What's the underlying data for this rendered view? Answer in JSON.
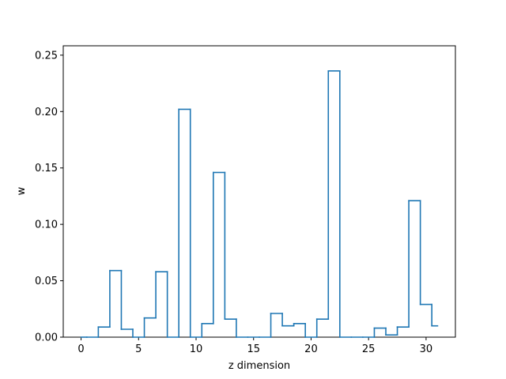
{
  "chart_data": {
    "type": "line",
    "drawstyle": "steps-mid",
    "title": "",
    "xlabel": "z dimension",
    "ylabel": "w",
    "xlim": [
      -1.55,
      32.55
    ],
    "ylim": [
      0,
      0.2583
    ],
    "xticks": [
      0,
      5,
      10,
      15,
      20,
      25,
      30
    ],
    "xtick_labels": [
      "0",
      "5",
      "10",
      "15",
      "20",
      "25",
      "30"
    ],
    "yticks": [
      0.0,
      0.05,
      0.1,
      0.15,
      0.2,
      0.25
    ],
    "ytick_labels": [
      "0.00",
      "0.05",
      "0.10",
      "0.15",
      "0.20",
      "0.25"
    ],
    "grid": false,
    "color": "#1f77b4",
    "series": [
      {
        "x": [
          0,
          1,
          2,
          3,
          4,
          5,
          6,
          7,
          8,
          9,
          10,
          11,
          12,
          13,
          14,
          15,
          16,
          17,
          18,
          19,
          20,
          21,
          22,
          23,
          24,
          25,
          26,
          27,
          28,
          29,
          30,
          31
        ],
        "values": [
          0.0,
          0.0,
          0.009,
          0.059,
          0.007,
          0.0,
          0.017,
          0.058,
          0.0,
          0.202,
          0.0,
          0.012,
          0.146,
          0.016,
          0.0,
          0.0,
          0.0,
          0.021,
          0.01,
          0.012,
          0.0,
          0.016,
          0.236,
          0.0,
          0.0,
          0.0,
          0.008,
          0.002,
          0.009,
          0.121,
          0.029,
          0.01
        ]
      }
    ]
  }
}
